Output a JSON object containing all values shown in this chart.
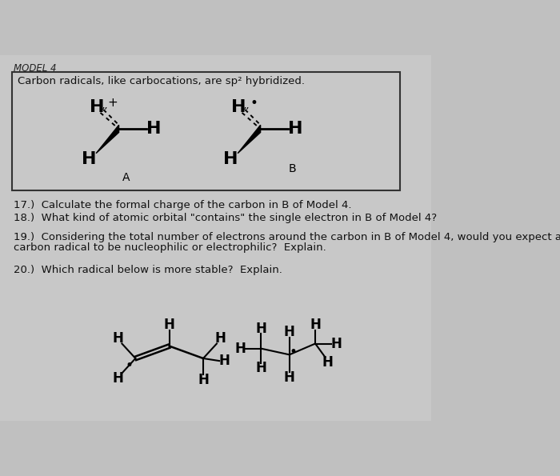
{
  "bg_color": "#c8c8c8",
  "model4_label": "MODEL 4",
  "box_text": "Carbon radicals, like carbocations, are sp² hybridized.",
  "label_A": "A",
  "label_B": "B",
  "q17": "17.)  Calculate the formal charge of the carbon in B of Model 4.",
  "q18": "18.)  What kind of atomic orbital \"contains\" the single electron in B of Model 4?",
  "q19_line1": "19.)  Considering the total number of electrons around the carbon in B of Model 4, would you expect a",
  "q19_line2": "carbon radical to be nucleophilic or electrophilic?  Explain.",
  "q20": "20.)  Which radical below is more stable?  Explain.",
  "font_color": "#111111"
}
